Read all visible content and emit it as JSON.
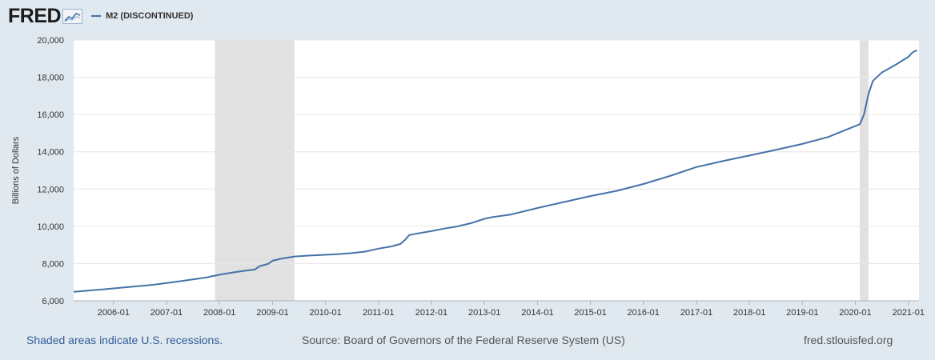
{
  "header": {
    "logo_text": "FRED",
    "legend": [
      {
        "label": "M2 (DISCONTINUED)",
        "color": "#4572a7"
      }
    ]
  },
  "chart_data": {
    "type": "line",
    "ylabel": "Billions of Dollars",
    "xlabel": "",
    "xlim": [
      "2005-04-01",
      "2021-03-15"
    ],
    "ylim": [
      6000,
      20000
    ],
    "y_ticks": [
      6000,
      8000,
      10000,
      12000,
      14000,
      16000,
      18000,
      20000
    ],
    "y_tick_labels": [
      "6,000",
      "8,000",
      "10,000",
      "12,000",
      "14,000",
      "16,000",
      "18,000",
      "20,000"
    ],
    "x_ticks": [
      "2006-01-01",
      "2007-01-01",
      "2008-01-01",
      "2009-01-01",
      "2010-01-01",
      "2011-01-01",
      "2012-01-01",
      "2013-01-01",
      "2014-01-01",
      "2015-01-01",
      "2016-01-01",
      "2017-01-01",
      "2018-01-01",
      "2019-01-01",
      "2020-01-01",
      "2021-01-01"
    ],
    "x_tick_labels": [
      "2006-01",
      "2007-01",
      "2008-01",
      "2009-01",
      "2010-01",
      "2011-01",
      "2012-01",
      "2013-01",
      "2014-01",
      "2015-01",
      "2016-01",
      "2017-01",
      "2018-01",
      "2019-01",
      "2020-01",
      "2021-01"
    ],
    "recessions": [
      {
        "start": "2007-12-01",
        "end": "2009-06-01"
      },
      {
        "start": "2020-02-01",
        "end": "2020-04-01"
      }
    ],
    "grid": true,
    "series": [
      {
        "name": "M2 (DISCONTINUED)",
        "color": "#4572a7",
        "points": [
          [
            "2005-04-01",
            6480
          ],
          [
            "2005-10-01",
            6600
          ],
          [
            "2006-04-01",
            6730
          ],
          [
            "2006-10-01",
            6860
          ],
          [
            "2007-04-01",
            7050
          ],
          [
            "2007-10-01",
            7250
          ],
          [
            "2008-01-01",
            7400
          ],
          [
            "2008-04-01",
            7520
          ],
          [
            "2008-07-01",
            7620
          ],
          [
            "2008-09-01",
            7680
          ],
          [
            "2008-10-01",
            7850
          ],
          [
            "2008-12-01",
            7980
          ],
          [
            "2009-01-01",
            8150
          ],
          [
            "2009-03-01",
            8260
          ],
          [
            "2009-06-01",
            8380
          ],
          [
            "2009-10-01",
            8440
          ],
          [
            "2010-01-01",
            8470
          ],
          [
            "2010-04-01",
            8510
          ],
          [
            "2010-07-01",
            8560
          ],
          [
            "2010-10-01",
            8640
          ],
          [
            "2011-01-01",
            8800
          ],
          [
            "2011-04-01",
            8920
          ],
          [
            "2011-06-01",
            9050
          ],
          [
            "2011-07-01",
            9250
          ],
          [
            "2011-08-01",
            9530
          ],
          [
            "2011-10-01",
            9620
          ],
          [
            "2012-01-01",
            9740
          ],
          [
            "2012-04-01",
            9880
          ],
          [
            "2012-07-01",
            10000
          ],
          [
            "2012-10-01",
            10170
          ],
          [
            "2013-01-01",
            10400
          ],
          [
            "2013-03-01",
            10500
          ],
          [
            "2013-07-01",
            10630
          ],
          [
            "2014-01-01",
            10980
          ],
          [
            "2014-07-01",
            11300
          ],
          [
            "2015-01-01",
            11620
          ],
          [
            "2015-07-01",
            11900
          ],
          [
            "2016-01-01",
            12270
          ],
          [
            "2016-07-01",
            12700
          ],
          [
            "2017-01-01",
            13180
          ],
          [
            "2017-07-01",
            13500
          ],
          [
            "2018-01-01",
            13800
          ],
          [
            "2018-07-01",
            14100
          ],
          [
            "2019-01-01",
            14420
          ],
          [
            "2019-07-01",
            14800
          ],
          [
            "2020-01-01",
            15380
          ],
          [
            "2020-02-01",
            15480
          ],
          [
            "2020-03-01",
            16000
          ],
          [
            "2020-04-01",
            17100
          ],
          [
            "2020-05-01",
            17800
          ],
          [
            "2020-07-01",
            18250
          ],
          [
            "2020-10-01",
            18650
          ],
          [
            "2021-01-01",
            19100
          ],
          [
            "2021-02-01",
            19350
          ],
          [
            "2021-03-01",
            19450
          ]
        ]
      }
    ]
  },
  "footer": {
    "recession_note": "Shaded areas indicate U.S. recessions.",
    "source": "Source: Board of Governors of the Federal Reserve System (US)",
    "url": "fred.stlouisfed.org"
  }
}
